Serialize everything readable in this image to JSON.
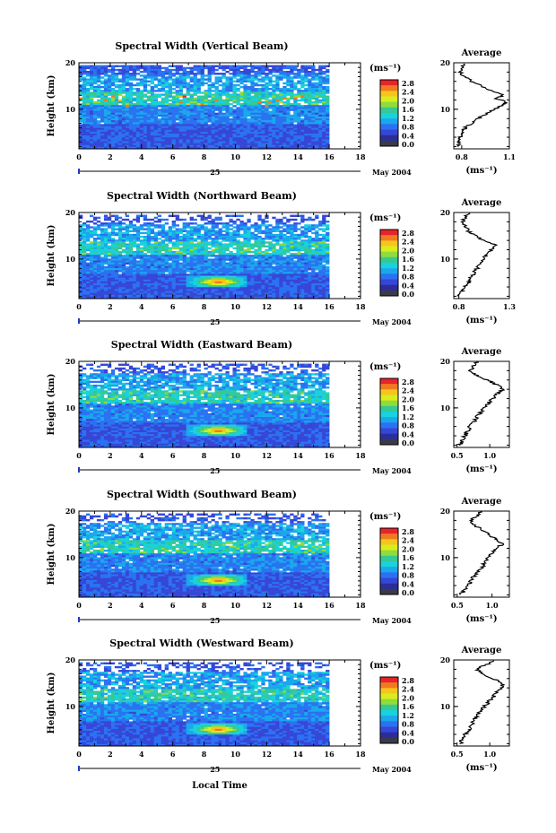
{
  "figure": {
    "x_title": "Local Time",
    "date_day": "25",
    "date_label": "May 2004"
  },
  "colorbar": {
    "unit_label": "(ms⁻¹)",
    "ticks": [
      "2.8",
      "2.4",
      "2.0",
      "1.6",
      "1.2",
      "0.8",
      "0.4",
      "0.0"
    ],
    "colors": [
      "#e8232a",
      "#f07a20",
      "#f6c51c",
      "#d9ec1e",
      "#8fdc3a",
      "#34c995",
      "#18d2dd",
      "#19a8ec",
      "#2a72f2",
      "#3646d6",
      "#2a2e9a",
      "#3a3a4a"
    ]
  },
  "chart_data": [
    {
      "type": "heatmap",
      "title": "Spectral Width (Vertical Beam)",
      "ylabel": "Height (km)",
      "xlim": [
        0,
        18
      ],
      "ylim": [
        1.5,
        20
      ],
      "xticks": [
        0,
        2,
        4,
        6,
        8,
        10,
        12,
        14,
        16,
        18
      ],
      "yticks": [
        10,
        20
      ],
      "data_x_range": [
        0,
        16
      ],
      "avg": {
        "title": "Average",
        "xlabel": "(ms⁻¹)",
        "xlim": [
          0.75,
          1.1
        ],
        "xticks": [
          "0.8",
          "1.1"
        ],
        "xtick_vals": [
          0.8,
          1.1
        ],
        "yticks": [
          10,
          20
        ],
        "profile": [
          [
            0.78,
            2
          ],
          [
            0.78,
            3
          ],
          [
            0.79,
            4
          ],
          [
            0.8,
            5
          ],
          [
            0.82,
            6
          ],
          [
            0.86,
            7
          ],
          [
            0.9,
            8
          ],
          [
            0.95,
            9
          ],
          [
            1.0,
            10
          ],
          [
            1.05,
            10.8
          ],
          [
            1.08,
            11.5
          ],
          [
            1.02,
            12.3
          ],
          [
            1.06,
            13
          ],
          [
            0.98,
            14
          ],
          [
            0.93,
            15
          ],
          [
            0.86,
            16
          ],
          [
            0.82,
            17
          ],
          [
            0.79,
            18
          ],
          [
            0.8,
            19
          ],
          [
            0.82,
            20
          ]
        ]
      }
    },
    {
      "type": "heatmap",
      "title": "Spectral Width (Northward Beam)",
      "ylabel": "Height (km)",
      "xlim": [
        0,
        18
      ],
      "ylim": [
        1.5,
        20
      ],
      "xticks": [
        0,
        2,
        4,
        6,
        8,
        10,
        12,
        14,
        16,
        18
      ],
      "yticks": [
        10,
        20
      ],
      "data_x_range": [
        0,
        16
      ],
      "avg": {
        "title": "Average",
        "xlabel": "(ms⁻¹)",
        "xlim": [
          0.75,
          1.3
        ],
        "xticks": [
          "0.8",
          "1.3"
        ],
        "xtick_vals": [
          0.8,
          1.3
        ],
        "yticks": [
          10,
          20
        ],
        "profile": [
          [
            0.8,
            2
          ],
          [
            0.82,
            3
          ],
          [
            0.86,
            4
          ],
          [
            0.9,
            5
          ],
          [
            0.92,
            6
          ],
          [
            0.95,
            7
          ],
          [
            0.98,
            8
          ],
          [
            1.0,
            9
          ],
          [
            1.04,
            10
          ],
          [
            1.08,
            11
          ],
          [
            1.12,
            12
          ],
          [
            1.18,
            13
          ],
          [
            1.05,
            14
          ],
          [
            0.96,
            15
          ],
          [
            0.9,
            16
          ],
          [
            0.86,
            17
          ],
          [
            0.84,
            18
          ],
          [
            0.86,
            19
          ],
          [
            0.92,
            20
          ]
        ]
      }
    },
    {
      "type": "heatmap",
      "title": "Spectral Width (Eastward Beam)",
      "ylabel": "Height (km)",
      "xlim": [
        0,
        18
      ],
      "ylim": [
        1.5,
        20
      ],
      "xticks": [
        0,
        2,
        4,
        6,
        8,
        10,
        12,
        14,
        16,
        18
      ],
      "yticks": [
        10,
        20
      ],
      "data_x_range": [
        0,
        16
      ],
      "avg": {
        "title": "Average",
        "xlabel": "(ms⁻¹)",
        "xlim": [
          0.45,
          1.3
        ],
        "xticks": [
          "0.5",
          "1.0"
        ],
        "xtick_vals": [
          0.5,
          1.0
        ],
        "yticks": [
          10,
          20
        ],
        "profile": [
          [
            0.55,
            2
          ],
          [
            0.58,
            3
          ],
          [
            0.62,
            4
          ],
          [
            0.66,
            5
          ],
          [
            0.7,
            6
          ],
          [
            0.76,
            7
          ],
          [
            0.8,
            8
          ],
          [
            0.86,
            9
          ],
          [
            0.92,
            10
          ],
          [
            0.98,
            11
          ],
          [
            1.05,
            12
          ],
          [
            1.12,
            13
          ],
          [
            1.2,
            14
          ],
          [
            1.1,
            15
          ],
          [
            0.95,
            16
          ],
          [
            0.8,
            17
          ],
          [
            0.7,
            18
          ],
          [
            0.75,
            19
          ],
          [
            0.82,
            20
          ]
        ]
      }
    },
    {
      "type": "heatmap",
      "title": "Spectral Width (Southward Beam)",
      "ylabel": "Height (km)",
      "xlim": [
        0,
        18
      ],
      "ylim": [
        1.5,
        20
      ],
      "xticks": [
        0,
        2,
        4,
        6,
        8,
        10,
        12,
        14,
        16,
        18
      ],
      "yticks": [
        10,
        20
      ],
      "data_x_range": [
        0,
        16
      ],
      "avg": {
        "title": "Average",
        "xlabel": "(ms⁻¹)",
        "xlim": [
          0.45,
          1.25
        ],
        "xticks": [
          "0.5",
          "1.0"
        ],
        "xtick_vals": [
          0.5,
          1.0
        ],
        "yticks": [
          10,
          20
        ],
        "profile": [
          [
            0.55,
            2
          ],
          [
            0.6,
            3
          ],
          [
            0.65,
            4
          ],
          [
            0.7,
            5
          ],
          [
            0.74,
            6
          ],
          [
            0.8,
            7
          ],
          [
            0.86,
            8
          ],
          [
            0.9,
            9
          ],
          [
            0.95,
            10
          ],
          [
            1.0,
            11
          ],
          [
            1.08,
            12
          ],
          [
            1.15,
            13
          ],
          [
            1.05,
            14
          ],
          [
            0.95,
            15
          ],
          [
            0.85,
            16
          ],
          [
            0.75,
            17
          ],
          [
            0.7,
            18
          ],
          [
            0.78,
            19
          ],
          [
            0.85,
            20
          ]
        ]
      }
    },
    {
      "type": "heatmap",
      "title": "Spectral Width (Westward Beam)",
      "ylabel": "Height (km)",
      "xlim": [
        0,
        18
      ],
      "ylim": [
        1.5,
        20
      ],
      "xticks": [
        0,
        2,
        4,
        6,
        8,
        10,
        12,
        14,
        16,
        18
      ],
      "yticks": [
        10,
        20
      ],
      "data_x_range": [
        0,
        16
      ],
      "avg": {
        "title": "Average",
        "xlabel": "(ms⁻¹)",
        "xlim": [
          0.45,
          1.3
        ],
        "xticks": [
          "0.5",
          "1.0"
        ],
        "xtick_vals": [
          0.5,
          1.0
        ],
        "yticks": [
          10,
          20
        ],
        "profile": [
          [
            0.55,
            2
          ],
          [
            0.58,
            3
          ],
          [
            0.62,
            4
          ],
          [
            0.68,
            5
          ],
          [
            0.72,
            6
          ],
          [
            0.76,
            7
          ],
          [
            0.8,
            8
          ],
          [
            0.86,
            9
          ],
          [
            0.92,
            10
          ],
          [
            0.98,
            11
          ],
          [
            1.05,
            12
          ],
          [
            1.1,
            13
          ],
          [
            1.18,
            14
          ],
          [
            1.2,
            15
          ],
          [
            1.05,
            16
          ],
          [
            0.9,
            17
          ],
          [
            0.8,
            18
          ],
          [
            0.95,
            19
          ],
          [
            1.1,
            20
          ]
        ]
      }
    }
  ]
}
